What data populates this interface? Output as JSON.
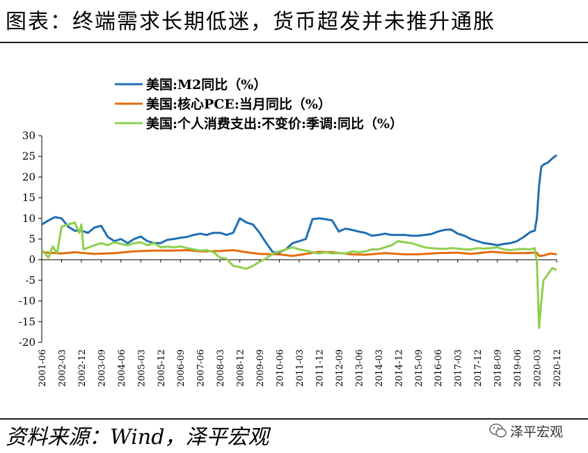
{
  "title": "图表：终端需求长期低迷，货币超发并未推升通胀",
  "source": "资料来源：Wind，泽平宏观",
  "brand": {
    "name": "泽平宏观",
    "icon": "wechat-icon"
  },
  "chart_data": {
    "type": "line",
    "ylim": [
      -20,
      30
    ],
    "yticks": [
      -20,
      -15,
      -10,
      -5,
      0,
      5,
      10,
      15,
      20,
      25,
      30
    ],
    "x_range": [
      "2001-06",
      "2020-12"
    ],
    "xticks": [
      "2001-06",
      "2002-03",
      "2002-12",
      "2003-09",
      "2004-06",
      "2005-03",
      "2005-12",
      "2006-09",
      "2007-06",
      "2008-03",
      "2008-12",
      "2009-09",
      "2010-06",
      "2011-03",
      "2011-12",
      "2012-09",
      "2013-06",
      "2014-03",
      "2014-12",
      "2015-09",
      "2016-06",
      "2017-03",
      "2017-12",
      "2018-09",
      "2019-06",
      "2020-03",
      "2020-12"
    ],
    "legend_position": "top-left",
    "series": [
      {
        "name": "美国:M2同比（%）",
        "color": "#1f6eb4",
        "points": [
          [
            "2001-06",
            8.5
          ],
          [
            "2001-09",
            9.5
          ],
          [
            "2001-12",
            10.3
          ],
          [
            "2002-03",
            10
          ],
          [
            "2002-06",
            8
          ],
          [
            "2002-09",
            7
          ],
          [
            "2002-12",
            7
          ],
          [
            "2003-03",
            6.5
          ],
          [
            "2003-06",
            7.8
          ],
          [
            "2003-09",
            8.2
          ],
          [
            "2003-12",
            5.5
          ],
          [
            "2004-03",
            4.5
          ],
          [
            "2004-06",
            5
          ],
          [
            "2004-09",
            4
          ],
          [
            "2004-12",
            5
          ],
          [
            "2005-03",
            5.6
          ],
          [
            "2005-06",
            4.5
          ],
          [
            "2005-09",
            4
          ],
          [
            "2005-12",
            4
          ],
          [
            "2006-03",
            4.8
          ],
          [
            "2006-06",
            5
          ],
          [
            "2006-09",
            5.3
          ],
          [
            "2006-12",
            5.5
          ],
          [
            "2007-03",
            6
          ],
          [
            "2007-06",
            6.3
          ],
          [
            "2007-09",
            6
          ],
          [
            "2007-12",
            6.5
          ],
          [
            "2008-03",
            6.5
          ],
          [
            "2008-06",
            6
          ],
          [
            "2008-09",
            6.5
          ],
          [
            "2008-12",
            10
          ],
          [
            "2009-03",
            9
          ],
          [
            "2009-06",
            8.5
          ],
          [
            "2009-09",
            6.5
          ],
          [
            "2009-12",
            4
          ],
          [
            "2010-03",
            1.8
          ],
          [
            "2010-06",
            1.8
          ],
          [
            "2010-09",
            2.5
          ],
          [
            "2010-12",
            4
          ],
          [
            "2011-03",
            4.5
          ],
          [
            "2011-06",
            5
          ],
          [
            "2011-09",
            9.8
          ],
          [
            "2011-12",
            10
          ],
          [
            "2012-03",
            9.8
          ],
          [
            "2012-06",
            9.5
          ],
          [
            "2012-09",
            6.8
          ],
          [
            "2012-12",
            7.5
          ],
          [
            "2013-03",
            7.2
          ],
          [
            "2013-06",
            6.8
          ],
          [
            "2013-09",
            6.5
          ],
          [
            "2013-12",
            5.8
          ],
          [
            "2014-03",
            6
          ],
          [
            "2014-06",
            6.3
          ],
          [
            "2014-09",
            6
          ],
          [
            "2014-12",
            6
          ],
          [
            "2015-03",
            6
          ],
          [
            "2015-06",
            5.8
          ],
          [
            "2015-09",
            5.8
          ],
          [
            "2015-12",
            6
          ],
          [
            "2016-03",
            6.2
          ],
          [
            "2016-06",
            6.8
          ],
          [
            "2016-09",
            7.2
          ],
          [
            "2016-12",
            7.3
          ],
          [
            "2017-03",
            6.3
          ],
          [
            "2017-06",
            5.8
          ],
          [
            "2017-09",
            5
          ],
          [
            "2017-12",
            4.5
          ],
          [
            "2018-03",
            4
          ],
          [
            "2018-06",
            3.8
          ],
          [
            "2018-09",
            3.5
          ],
          [
            "2018-12",
            3.8
          ],
          [
            "2019-03",
            4
          ],
          [
            "2019-06",
            4.5
          ],
          [
            "2019-09",
            5.5
          ],
          [
            "2019-12",
            6.7
          ],
          [
            "2020-02",
            7
          ],
          [
            "2020-03",
            10
          ],
          [
            "2020-04",
            18
          ],
          [
            "2020-05",
            22.5
          ],
          [
            "2020-06",
            23
          ],
          [
            "2020-08",
            23.5
          ],
          [
            "2020-10",
            24.5
          ],
          [
            "2020-12",
            25.3
          ]
        ]
      },
      {
        "name": "美国:核心PCE:当月同比（%）",
        "color": "#e46c0a",
        "points": [
          [
            "2001-06",
            1.8
          ],
          [
            "2002-03",
            1.5
          ],
          [
            "2002-09",
            1.8
          ],
          [
            "2003-06",
            1.4
          ],
          [
            "2004-03",
            1.6
          ],
          [
            "2004-12",
            2
          ],
          [
            "2005-09",
            2.2
          ],
          [
            "2006-06",
            2.2
          ],
          [
            "2006-12",
            2.3
          ],
          [
            "2007-06",
            2
          ],
          [
            "2008-03",
            2.1
          ],
          [
            "2008-09",
            2.3
          ],
          [
            "2009-03",
            1.8
          ],
          [
            "2009-09",
            1.4
          ],
          [
            "2010-06",
            1.3
          ],
          [
            "2010-12",
            0.9
          ],
          [
            "2011-06",
            1.4
          ],
          [
            "2011-12",
            1.9
          ],
          [
            "2012-06",
            1.8
          ],
          [
            "2013-03",
            1.3
          ],
          [
            "2013-09",
            1.2
          ],
          [
            "2014-06",
            1.6
          ],
          [
            "2015-03",
            1.3
          ],
          [
            "2015-09",
            1.3
          ],
          [
            "2016-06",
            1.6
          ],
          [
            "2017-03",
            1.7
          ],
          [
            "2017-09",
            1.4
          ],
          [
            "2018-06",
            1.9
          ],
          [
            "2019-03",
            1.6
          ],
          [
            "2019-09",
            1.6
          ],
          [
            "2020-03",
            1.7
          ],
          [
            "2020-04",
            0.9
          ],
          [
            "2020-06",
            1
          ],
          [
            "2020-09",
            1.5
          ],
          [
            "2020-12",
            1.3
          ]
        ]
      },
      {
        "name": "美国:个人消费支出:不变价:季调:同比（%）",
        "color": "#8cd04d",
        "points": [
          [
            "2001-06",
            2.5
          ],
          [
            "2001-09",
            0.5
          ],
          [
            "2001-11",
            3.2
          ],
          [
            "2002-01",
            1.5
          ],
          [
            "2002-03",
            8
          ],
          [
            "2002-06",
            8.5
          ],
          [
            "2002-09",
            9
          ],
          [
            "2002-11",
            6.5
          ],
          [
            "2002-12",
            8.5
          ],
          [
            "2003-01",
            2.5
          ],
          [
            "2003-06",
            3.5
          ],
          [
            "2003-09",
            4
          ],
          [
            "2003-12",
            3.5
          ],
          [
            "2004-03",
            4.2
          ],
          [
            "2004-06",
            3.8
          ],
          [
            "2004-09",
            3.5
          ],
          [
            "2004-12",
            4
          ],
          [
            "2005-03",
            4.2
          ],
          [
            "2005-06",
            3.5
          ],
          [
            "2005-09",
            4
          ],
          [
            "2005-12",
            3
          ],
          [
            "2006-03",
            3.2
          ],
          [
            "2006-06",
            3
          ],
          [
            "2006-09",
            3.2
          ],
          [
            "2006-12",
            2.8
          ],
          [
            "2007-03",
            2.5
          ],
          [
            "2007-06",
            2.2
          ],
          [
            "2007-09",
            2.3
          ],
          [
            "2007-12",
            1.8
          ],
          [
            "2008-03",
            0.5
          ],
          [
            "2008-06",
            0.2
          ],
          [
            "2008-09",
            -1.5
          ],
          [
            "2008-12",
            -1.8
          ],
          [
            "2009-03",
            -2.2
          ],
          [
            "2009-06",
            -1.5
          ],
          [
            "2009-09",
            -0.5
          ],
          [
            "2009-12",
            0.3
          ],
          [
            "2010-03",
            1.5
          ],
          [
            "2010-06",
            2
          ],
          [
            "2010-09",
            2.5
          ],
          [
            "2010-12",
            3
          ],
          [
            "2011-03",
            2.5
          ],
          [
            "2011-06",
            2.2
          ],
          [
            "2011-09",
            1.8
          ],
          [
            "2011-12",
            1.5
          ],
          [
            "2012-03",
            1.8
          ],
          [
            "2012-06",
            1.5
          ],
          [
            "2012-09",
            1.6
          ],
          [
            "2012-12",
            1.5
          ],
          [
            "2013-03",
            2
          ],
          [
            "2013-06",
            1.8
          ],
          [
            "2013-09",
            2
          ],
          [
            "2013-12",
            2.5
          ],
          [
            "2014-03",
            2.5
          ],
          [
            "2014-06",
            3
          ],
          [
            "2014-09",
            3.5
          ],
          [
            "2014-12",
            4.5
          ],
          [
            "2015-03",
            4.2
          ],
          [
            "2015-06",
            4
          ],
          [
            "2015-09",
            3.5
          ],
          [
            "2015-12",
            3
          ],
          [
            "2016-03",
            2.8
          ],
          [
            "2016-06",
            2.7
          ],
          [
            "2016-09",
            2.6
          ],
          [
            "2016-12",
            2.8
          ],
          [
            "2017-03",
            2.7
          ],
          [
            "2017-06",
            2.5
          ],
          [
            "2017-09",
            2.5
          ],
          [
            "2017-12",
            2.8
          ],
          [
            "2018-03",
            2.7
          ],
          [
            "2018-06",
            2.8
          ],
          [
            "2018-09",
            3
          ],
          [
            "2018-12",
            2.5
          ],
          [
            "2019-03",
            2.3
          ],
          [
            "2019-06",
            2.5
          ],
          [
            "2019-09",
            2.6
          ],
          [
            "2019-12",
            2.5
          ],
          [
            "2020-02",
            2.8
          ],
          [
            "2020-03",
            -0.5
          ],
          [
            "2020-04",
            -16.5
          ],
          [
            "2020-05",
            -10
          ],
          [
            "2020-06",
            -5
          ],
          [
            "2020-08",
            -3.5
          ],
          [
            "2020-10",
            -2
          ],
          [
            "2020-12",
            -2.5
          ]
        ]
      }
    ]
  }
}
